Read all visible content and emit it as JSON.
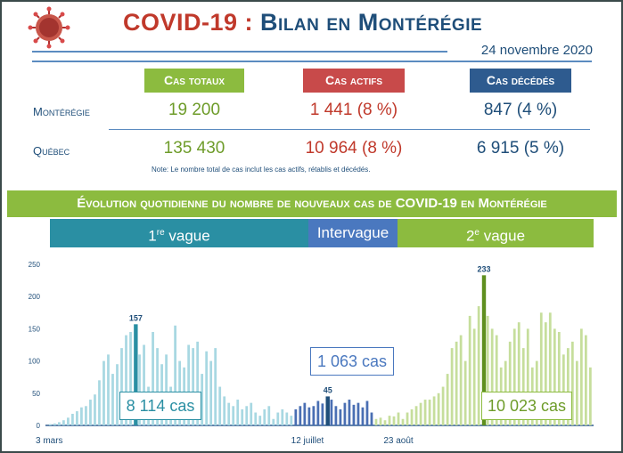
{
  "header": {
    "title_part1": "COVID-19 :",
    "title_part2": "Bilan en Montérégie",
    "date": "24 novembre 2020"
  },
  "summary": {
    "columns": [
      {
        "label": "Cas totaux",
        "color": "#8cbb3f",
        "text_color": "#6e9c2a"
      },
      {
        "label": "Cas actifs",
        "color": "#c84a4a",
        "text_color": "#c0392b"
      },
      {
        "label": "Cas décédés",
        "color": "#2e5b8f",
        "text_color": "#1f4e79"
      }
    ],
    "rows": [
      {
        "label": "Montérégie",
        "values": [
          "19 200",
          "1 441 (8 %)",
          "847 (4 %)"
        ]
      },
      {
        "label": "Québec",
        "values": [
          "135 430",
          "10 964 (8 %)",
          "6 915 (5 %)"
        ]
      }
    ],
    "note": "Note: Le nombre total de cas inclut les cas actifs, rétablis et décédés."
  },
  "section_title": "Évolution quotidienne du nombre de nouveaux cas de COVID-19 en Montérégie",
  "waves": [
    {
      "label_main": "1",
      "label_sup": "re",
      "label_rest": " vague",
      "color": "#2a8fa3"
    },
    {
      "label_main": "Intervague",
      "label_sup": "",
      "label_rest": "",
      "color": "#4a78bf"
    },
    {
      "label_main": "2",
      "label_sup": "e",
      "label_rest": " vague",
      "color": "#8cbb3f"
    }
  ],
  "chart_data": {
    "type": "bar",
    "ylim": [
      0,
      250
    ],
    "yticks": [
      0,
      50,
      100,
      150,
      200,
      250
    ],
    "x_labels": [
      "3 mars",
      "12 juillet",
      "23 août"
    ],
    "peaks": [
      {
        "label": "157",
        "value": 157
      },
      {
        "label": "45",
        "value": 45
      },
      {
        "label": "233",
        "value": 233
      }
    ],
    "totals": [
      "8 114 cas",
      "1 063 cas",
      "10 023 cas"
    ],
    "series": [
      {
        "values": [
          2,
          3,
          5,
          8,
          12,
          18,
          22,
          28,
          30,
          40,
          48,
          70,
          100,
          110,
          80,
          95,
          120,
          140,
          145,
          157,
          110,
          125,
          60,
          145,
          120,
          95,
          110,
          60,
          155,
          100,
          90,
          125,
          120,
          130,
          80,
          115,
          100,
          120,
          60,
          45,
          35,
          30,
          40,
          25,
          30,
          35,
          20,
          15,
          25,
          30,
          10,
          20,
          25,
          20,
          15
        ]
      },
      {
        "values": [
          25,
          30,
          35,
          28,
          30,
          38,
          34,
          45,
          40,
          30,
          25,
          35,
          40,
          32,
          35,
          28,
          38,
          20
        ]
      },
      {
        "values": [
          10,
          12,
          8,
          15,
          14,
          20,
          10,
          20,
          25,
          30,
          35,
          40,
          40,
          45,
          50,
          60,
          80,
          120,
          130,
          140,
          100,
          170,
          150,
          185,
          233,
          170,
          150,
          140,
          90,
          100,
          130,
          150,
          160,
          120,
          150,
          90,
          100,
          175,
          160,
          175,
          150,
          145,
          110,
          120,
          130,
          100,
          150,
          140,
          90
        ]
      }
    ],
    "axis_x_zero": 0
  }
}
